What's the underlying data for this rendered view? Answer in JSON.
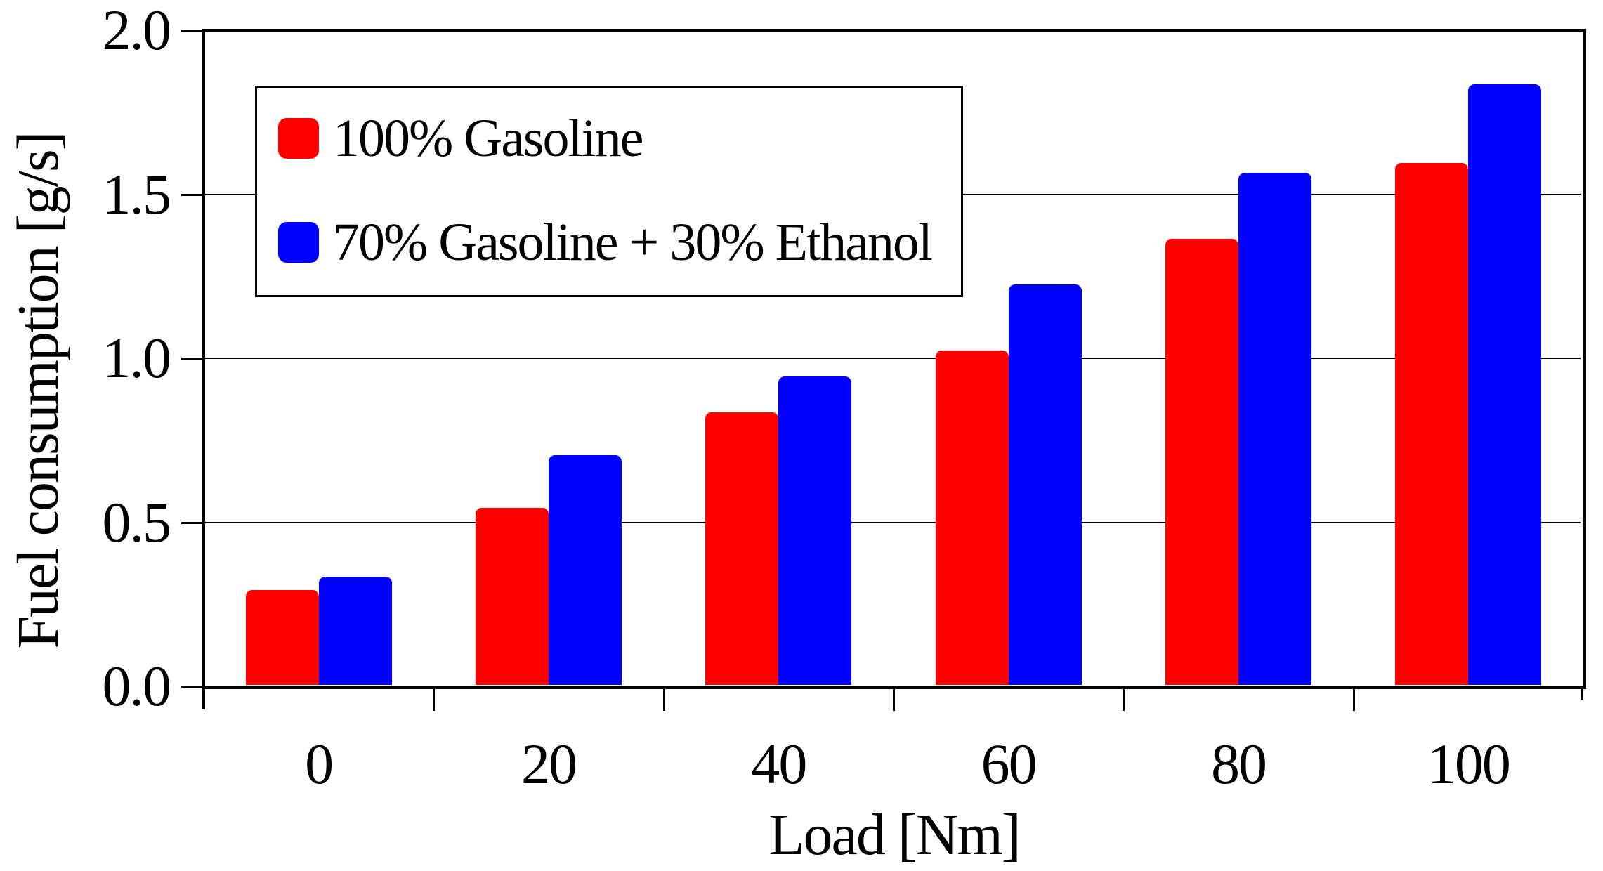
{
  "chart_data": {
    "type": "bar",
    "title": "",
    "xlabel": "Load [Nm]",
    "ylabel": "Fuel consumption [g/s]",
    "categories": [
      "0",
      "20",
      "40",
      "60",
      "80",
      "100"
    ],
    "series": [
      {
        "name": "100% Gasoline",
        "color": "#ff0000",
        "values": [
          0.29,
          0.54,
          0.83,
          1.02,
          1.36,
          1.59
        ]
      },
      {
        "name": "70% Gasoline + 30% Ethanol",
        "color": "#0000ff",
        "values": [
          0.33,
          0.7,
          0.94,
          1.22,
          1.56,
          1.83
        ]
      }
    ],
    "ylim": [
      0.0,
      2.0
    ],
    "yticks": [
      0.0,
      0.5,
      1.0,
      1.5,
      2.0
    ],
    "ytick_labels": [
      "0.0",
      "0.5",
      "1.0",
      "1.5",
      "2.0"
    ],
    "grid": true,
    "legend_position": "top-left",
    "background": "#ffffff",
    "axis_color": "#000000",
    "text_color": "#000000"
  }
}
